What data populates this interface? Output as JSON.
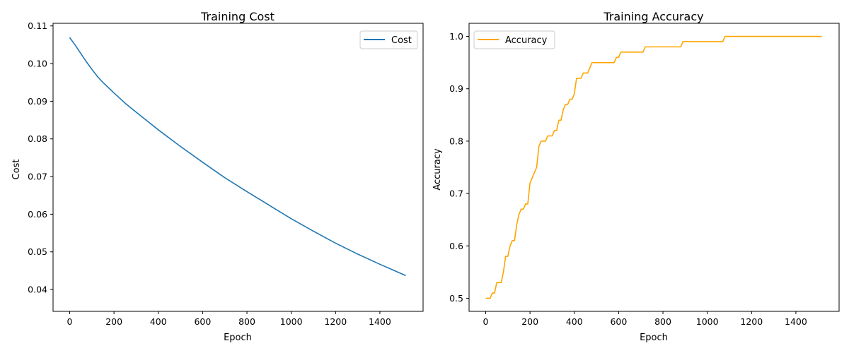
{
  "chart_data": [
    {
      "type": "line",
      "title": "Training Cost",
      "xlabel": "Epoch",
      "ylabel": "Cost",
      "xlim": [
        -75,
        1595
      ],
      "ylim": [
        0.0342,
        0.1107
      ],
      "xticks": [
        0,
        200,
        400,
        600,
        800,
        1000,
        1200,
        1400
      ],
      "yticks": [
        0.04,
        0.05,
        0.06,
        0.07,
        0.08,
        0.09,
        0.1,
        0.11
      ],
      "ytick_labels": [
        "0.04",
        "0.05",
        "0.06",
        "0.07",
        "0.08",
        "0.09",
        "0.10",
        "0.11"
      ],
      "grid": false,
      "legend_position": "upper right",
      "colors": {
        "line": "#1f77b4"
      },
      "series": [
        {
          "name": "Cost",
          "x": [
            0,
            25,
            50,
            75,
            100,
            125,
            150,
            200,
            250,
            300,
            400,
            500,
            600,
            700,
            800,
            900,
            1000,
            1100,
            1200,
            1300,
            1400,
            1517
          ],
          "y": [
            0.1069,
            0.1049,
            0.1027,
            0.1005,
            0.0985,
            0.0966,
            0.095,
            0.0922,
            0.0895,
            0.0871,
            0.0824,
            0.078,
            0.0738,
            0.0697,
            0.066,
            0.0624,
            0.0588,
            0.0555,
            0.0523,
            0.0494,
            0.0467,
            0.0437
          ]
        }
      ]
    },
    {
      "type": "line",
      "title": "Training Accuracy",
      "xlabel": "Epoch",
      "ylabel": "Accuracy",
      "xlim": [
        -75,
        1595
      ],
      "ylim": [
        0.475,
        1.025
      ],
      "xticks": [
        0,
        200,
        400,
        600,
        800,
        1000,
        1200,
        1400
      ],
      "yticks": [
        0.5,
        0.6,
        0.7,
        0.8,
        0.9,
        1.0
      ],
      "ytick_labels": [
        "0.5",
        "0.6",
        "0.7",
        "0.8",
        "0.9",
        "1.0"
      ],
      "grid": false,
      "legend_position": "upper left",
      "colors": {
        "line": "#ffa500"
      },
      "series": [
        {
          "name": "Accuracy",
          "x": [
            0,
            20,
            30,
            40,
            50,
            60,
            70,
            80,
            90,
            100,
            110,
            120,
            130,
            140,
            150,
            160,
            170,
            180,
            190,
            200,
            210,
            220,
            230,
            240,
            250,
            260,
            270,
            280,
            290,
            300,
            310,
            320,
            330,
            340,
            350,
            360,
            370,
            380,
            390,
            400,
            410,
            420,
            430,
            440,
            450,
            460,
            470,
            480,
            490,
            500,
            580,
            590,
            600,
            610,
            620,
            700,
            710,
            720,
            860,
            880,
            890,
            1060,
            1070,
            1080,
            1517
          ],
          "y": [
            0.5,
            0.5,
            0.51,
            0.51,
            0.53,
            0.53,
            0.53,
            0.55,
            0.58,
            0.58,
            0.6,
            0.61,
            0.61,
            0.64,
            0.66,
            0.67,
            0.67,
            0.68,
            0.68,
            0.72,
            0.73,
            0.74,
            0.75,
            0.79,
            0.8,
            0.8,
            0.8,
            0.81,
            0.81,
            0.81,
            0.82,
            0.82,
            0.84,
            0.84,
            0.86,
            0.87,
            0.87,
            0.88,
            0.88,
            0.89,
            0.92,
            0.92,
            0.92,
            0.93,
            0.93,
            0.93,
            0.94,
            0.95,
            0.95,
            0.95,
            0.95,
            0.96,
            0.96,
            0.97,
            0.97,
            0.97,
            0.97,
            0.98,
            0.98,
            0.98,
            0.99,
            0.99,
            0.99,
            1.0,
            1.0
          ]
        }
      ]
    }
  ]
}
